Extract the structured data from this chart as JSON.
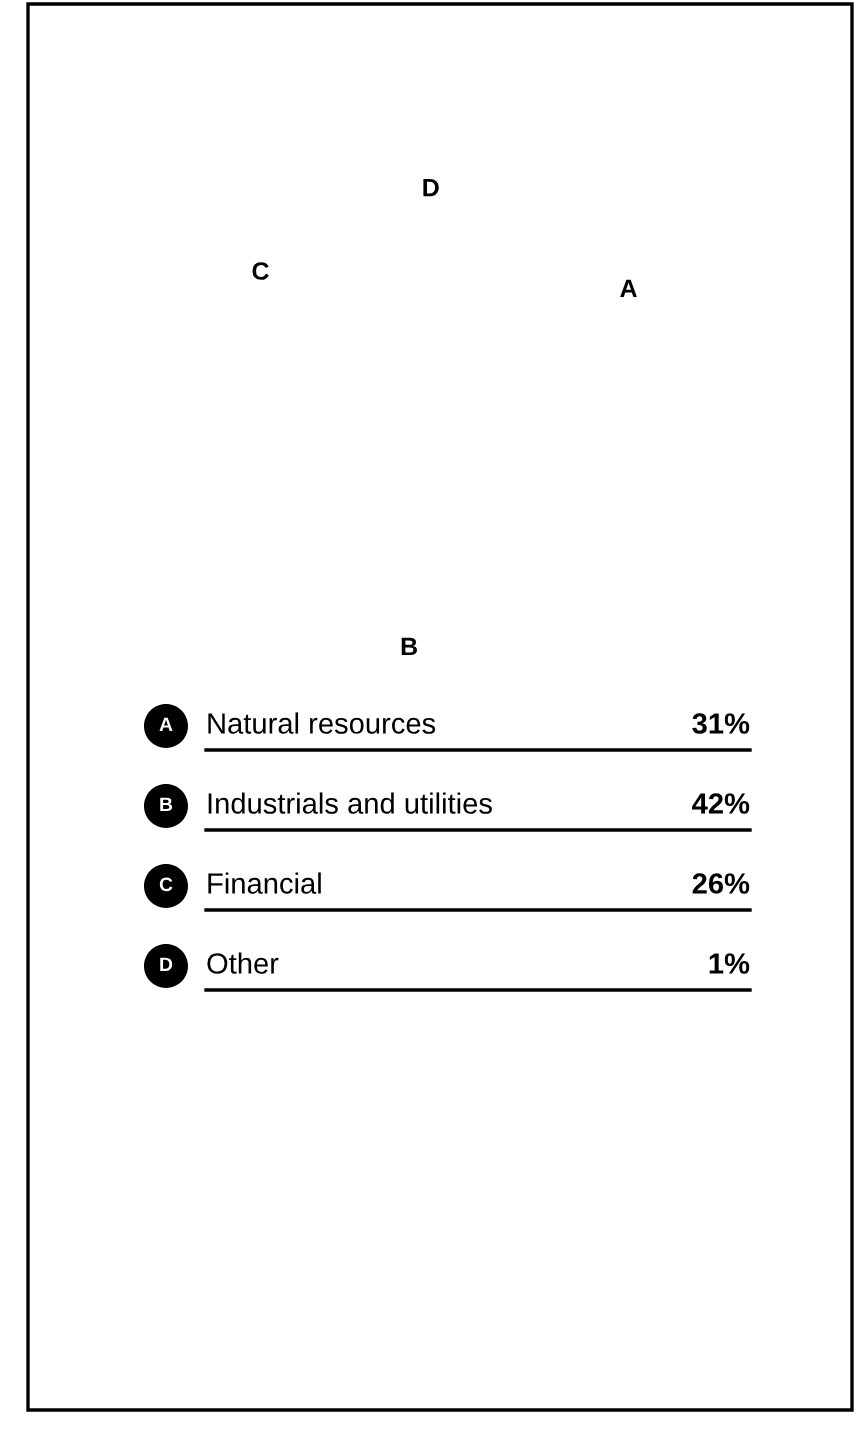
{
  "chart_data": {
    "type": "other",
    "categories": [
      "Natural resources",
      "Industrials and utilities",
      "Financial",
      "Other"
    ],
    "values": [
      31,
      42,
      26,
      1
    ],
    "value_labels": [
      "31%",
      "42%",
      "26%",
      "1%"
    ],
    "annotations": [
      "A",
      "B",
      "C",
      "D"
    ]
  }
}
